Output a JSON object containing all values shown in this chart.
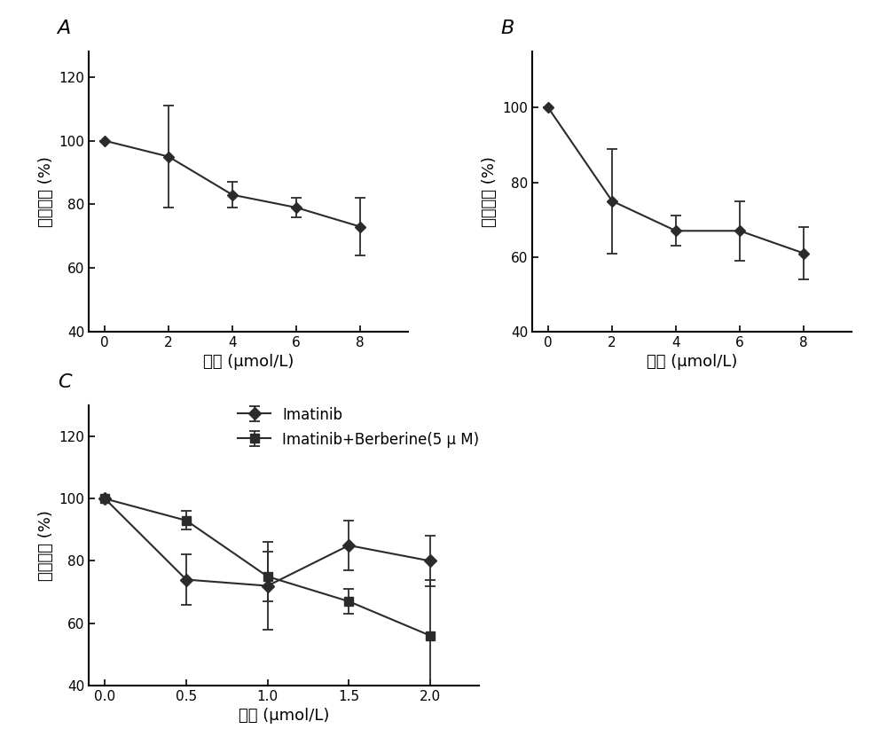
{
  "panel_A": {
    "x": [
      0,
      2,
      4,
      6,
      8
    ],
    "y": [
      100,
      95,
      83,
      79,
      73
    ],
    "yerr": [
      0,
      16,
      4,
      3,
      9
    ],
    "xlim": [
      -0.5,
      9.5
    ],
    "ylim": [
      40,
      128
    ],
    "yticks": [
      40,
      60,
      80,
      100,
      120
    ],
    "xticks": [
      0,
      2,
      4,
      6,
      8
    ],
    "xlabel": "浓度 (μmol/L)",
    "ylabel": "相对活度 (%)",
    "label": "A"
  },
  "panel_B": {
    "x": [
      0,
      2,
      4,
      6,
      8
    ],
    "y": [
      100,
      75,
      67,
      67,
      61
    ],
    "yerr": [
      0,
      14,
      4,
      8,
      7
    ],
    "xlim": [
      -0.5,
      9.5
    ],
    "ylim": [
      40,
      115
    ],
    "yticks": [
      40,
      60,
      80,
      100
    ],
    "xticks": [
      0,
      2,
      4,
      6,
      8
    ],
    "xlabel": "浓度 (μmol/L)",
    "ylabel": "相对活度 (%)",
    "label": "B"
  },
  "panel_C": {
    "line1": {
      "x": [
        0.0,
        0.5,
        1.0,
        1.5,
        2.0
      ],
      "y": [
        100,
        74,
        72,
        85,
        80
      ],
      "yerr": [
        0,
        8,
        14,
        8,
        8
      ],
      "label": "Imatinib"
    },
    "line2": {
      "x": [
        0.0,
        0.5,
        1.0,
        1.5,
        2.0
      ],
      "y": [
        100,
        93,
        75,
        67,
        56
      ],
      "yerr": [
        0,
        3,
        8,
        4,
        18
      ],
      "label": "Imatinib+Berberine(5 μ M)"
    },
    "xlim": [
      -0.1,
      2.3
    ],
    "ylim": [
      40,
      130
    ],
    "yticks": [
      40,
      60,
      80,
      100,
      120
    ],
    "xticks": [
      0.0,
      0.5,
      1.0,
      1.5,
      2.0
    ],
    "xlabel": "浓度 (μmol/L)",
    "ylabel": "相对活度 (%)",
    "label": "C"
  },
  "line_color": "#2b2b2b",
  "bg_color": "#ffffff"
}
